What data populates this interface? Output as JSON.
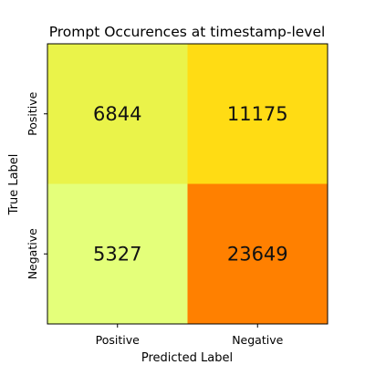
{
  "chart_data": {
    "type": "heatmap",
    "title": "Prompt Occurences at timestamp-level",
    "xlabel": "Predicted Label",
    "ylabel": "True Label",
    "x_categories": [
      "Positive",
      "Negative"
    ],
    "y_categories": [
      "Positive",
      "Negative"
    ],
    "values": [
      [
        6844,
        11175
      ],
      [
        5327,
        23649
      ]
    ],
    "colormap": "Wistia",
    "cell_colors": [
      [
        "#eaf34a",
        "#ffdc14"
      ],
      [
        "#e4ff7a",
        "#ff8000"
      ]
    ],
    "grid": false
  }
}
